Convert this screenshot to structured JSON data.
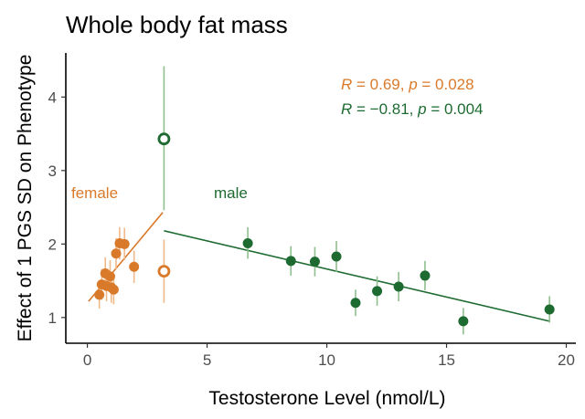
{
  "chart_data": {
    "type": "scatter",
    "title": "Whole body fat mass",
    "xlabel": "Testosterone Level (nmol/L)",
    "ylabel": "Effect of 1 PGS SD on Phenotype",
    "xlim": [
      -0.9,
      20.4
    ],
    "ylim": [
      0.65,
      4.6
    ],
    "x_ticks": [
      0,
      5,
      10,
      15,
      20
    ],
    "y_ticks": [
      1,
      2,
      3,
      4
    ],
    "grid": false,
    "colors": {
      "female": "#d97a2b",
      "female_error": "#f0b98a",
      "male": "#1e6b32",
      "male_error": "#8fbf8f"
    },
    "group_labels": [
      {
        "name": "female",
        "text": "female"
      },
      {
        "name": "male",
        "text": "male"
      }
    ],
    "stat_annotations": [
      {
        "series": "female",
        "r_label": "R",
        "p_label": "p",
        "r_value": "0.69",
        "p_value": "0.028"
      },
      {
        "series": "male",
        "r_label": "R",
        "p_label": "p",
        "r_value": "−0.81",
        "p_value": "0.004"
      }
    ],
    "series": [
      {
        "group": "female",
        "points": [
          {
            "x": 0.5,
            "y": 1.31,
            "lo": 1.12,
            "hi": 1.5
          },
          {
            "x": 0.6,
            "y": 1.45,
            "lo": 1.24,
            "hi": 1.66
          },
          {
            "x": 0.75,
            "y": 1.6,
            "lo": 1.38,
            "hi": 1.82
          },
          {
            "x": 0.8,
            "y": 1.43,
            "lo": 1.22,
            "hi": 1.64
          },
          {
            "x": 0.95,
            "y": 1.56,
            "lo": 1.34,
            "hi": 1.78
          },
          {
            "x": 1.0,
            "y": 1.41,
            "lo": 1.2,
            "hi": 1.62
          },
          {
            "x": 1.1,
            "y": 1.38,
            "lo": 1.18,
            "hi": 1.58
          },
          {
            "x": 1.2,
            "y": 1.87,
            "lo": 1.66,
            "hi": 2.08
          },
          {
            "x": 1.35,
            "y": 2.01,
            "lo": 1.79,
            "hi": 2.23
          },
          {
            "x": 1.55,
            "y": 2.0,
            "lo": 1.78,
            "hi": 2.22
          },
          {
            "x": 1.95,
            "y": 1.69,
            "lo": 1.47,
            "hi": 1.91
          }
        ],
        "outliers": [
          {
            "x": 3.2,
            "y": 1.63,
            "lo": 1.2,
            "hi": 2.06
          }
        ],
        "fit": {
          "x": [
            0.05,
            3.15
          ],
          "y": [
            1.22,
            2.43
          ]
        }
      },
      {
        "group": "male",
        "points": [
          {
            "x": 6.7,
            "y": 2.01,
            "lo": 1.8,
            "hi": 2.23
          },
          {
            "x": 8.5,
            "y": 1.77,
            "lo": 1.57,
            "hi": 1.97
          },
          {
            "x": 9.5,
            "y": 1.76,
            "lo": 1.56,
            "hi": 1.96
          },
          {
            "x": 10.4,
            "y": 1.83,
            "lo": 1.62,
            "hi": 2.04
          },
          {
            "x": 11.2,
            "y": 1.2,
            "lo": 1.02,
            "hi": 1.38
          },
          {
            "x": 12.1,
            "y": 1.36,
            "lo": 1.16,
            "hi": 1.56
          },
          {
            "x": 13.0,
            "y": 1.42,
            "lo": 1.22,
            "hi": 1.62
          },
          {
            "x": 14.1,
            "y": 1.57,
            "lo": 1.37,
            "hi": 1.77
          },
          {
            "x": 15.7,
            "y": 0.95,
            "lo": 0.77,
            "hi": 1.13
          },
          {
            "x": 19.3,
            "y": 1.11,
            "lo": 0.93,
            "hi": 1.29
          }
        ],
        "outliers": [
          {
            "x": 3.2,
            "y": 3.43,
            "lo": 2.46,
            "hi": 4.42
          }
        ],
        "fit": {
          "x": [
            3.2,
            19.3
          ],
          "y": [
            2.18,
            0.95
          ]
        }
      }
    ]
  }
}
